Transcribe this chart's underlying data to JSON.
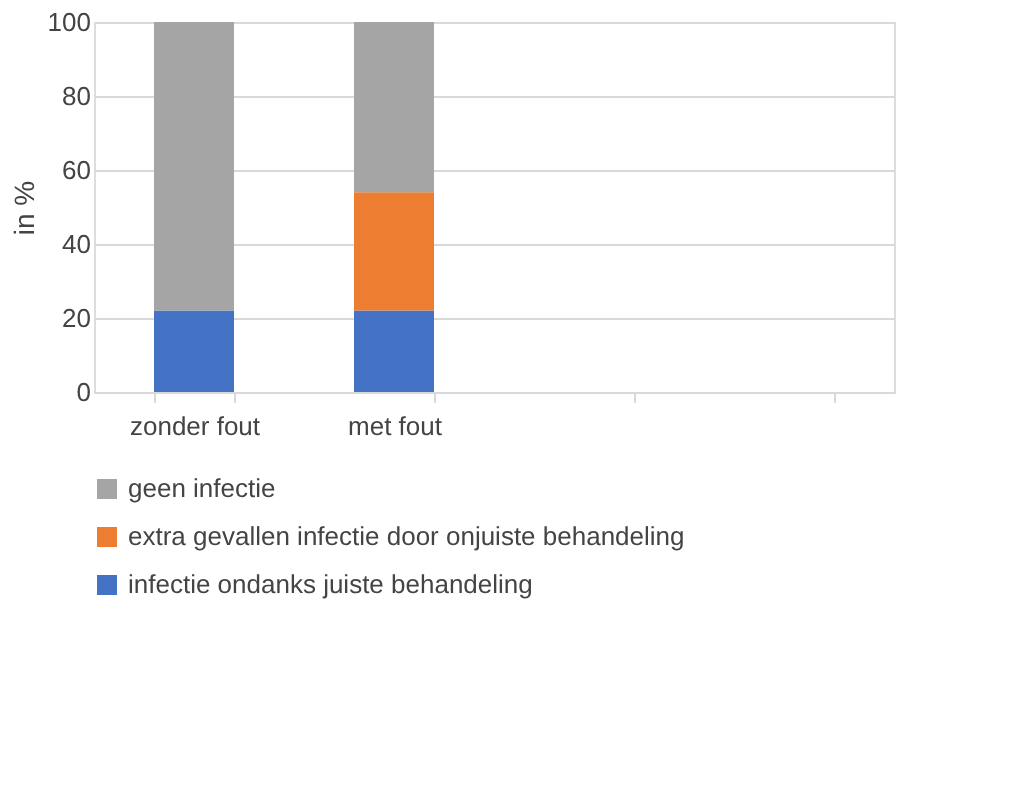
{
  "chart_data": {
    "type": "bar",
    "stacked": true,
    "ylabel": "in %",
    "categories": [
      "zonder fout",
      "met fout",
      null,
      null
    ],
    "series": [
      {
        "name": "infectie ondanks juiste behandeling",
        "color": "#4472c4",
        "values": [
          22,
          22,
          null,
          null
        ]
      },
      {
        "name": "extra gevallen infectie door onjuiste behandeling",
        "color": "#ed7d31",
        "values": [
          0,
          32,
          null,
          null
        ]
      },
      {
        "name": "geen infectie",
        "color": "#a5a5a5",
        "values": [
          78,
          46,
          null,
          null
        ]
      }
    ],
    "ylim": [
      0,
      100
    ],
    "yticks": [
      0,
      20,
      40,
      60,
      80,
      100
    ],
    "grid": "y",
    "legend": "bottom"
  }
}
